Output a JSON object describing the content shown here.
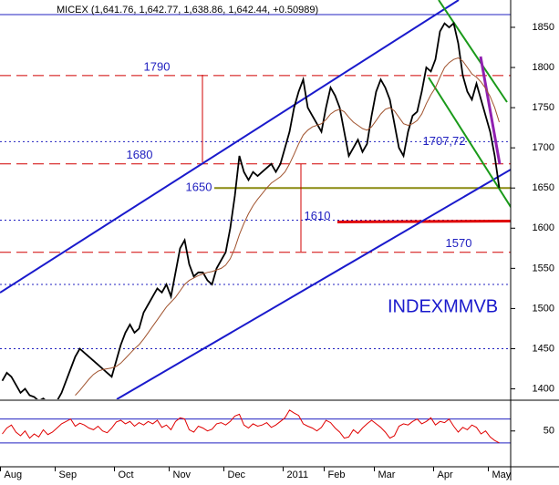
{
  "chart_data": [
    {
      "type": "line",
      "title": "MICEX (1,641.76, 1,642.77, 1,638.86, 1,642.44, +0.50989)",
      "annotation": "INDEXMMVB",
      "categories": [
        "Aug",
        null,
        null,
        null,
        null,
        null,
        null,
        null,
        null,
        null,
        null,
        null,
        "Sep",
        null,
        null,
        null,
        null,
        null,
        null,
        null,
        null,
        null,
        null,
        null,
        null,
        "Oct",
        null,
        null,
        null,
        null,
        null,
        null,
        null,
        null,
        null,
        null,
        null,
        "Nov",
        null,
        null,
        null,
        null,
        null,
        null,
        null,
        null,
        null,
        null,
        null,
        "Dec",
        null,
        null,
        null,
        null,
        null,
        null,
        null,
        null,
        null,
        null,
        null,
        null,
        "2011",
        null,
        null,
        null,
        null,
        null,
        null,
        null,
        null,
        "Feb",
        null,
        null,
        null,
        null,
        null,
        null,
        null,
        null,
        null,
        null,
        "Mar",
        null,
        null,
        null,
        null,
        null,
        null,
        null,
        null,
        null,
        null,
        null,
        null,
        "Apr",
        null,
        null,
        null,
        null,
        null,
        null,
        null,
        null,
        null,
        null,
        null,
        "May",
        null,
        null
      ],
      "series": [
        {
          "color": "#000000",
          "values": [
            1410,
            1420,
            1415,
            1405,
            1395,
            1400,
            1392,
            1390,
            1385,
            1388,
            1383,
            1380,
            1385,
            1395,
            1410,
            1425,
            1440,
            1450,
            1445,
            1440,
            1435,
            1430,
            1425,
            1420,
            1415,
            1435,
            1455,
            1470,
            1480,
            1470,
            1475,
            1495,
            1505,
            1515,
            1525,
            1520,
            1530,
            1515,
            1545,
            1575,
            1585,
            1555,
            1540,
            1545,
            1545,
            1535,
            1530,
            1550,
            1560,
            1570,
            1600,
            1640,
            1690,
            1670,
            1660,
            1670,
            1665,
            1670,
            1675,
            1680,
            1670,
            1680,
            1700,
            1720,
            1750,
            1770,
            1785,
            1750,
            1740,
            1730,
            1720,
            1750,
            1775,
            1765,
            1750,
            1720,
            1690,
            1700,
            1710,
            1695,
            1705,
            1740,
            1770,
            1785,
            1775,
            1760,
            1730,
            1700,
            1690,
            1720,
            1740,
            1745,
            1770,
            1800,
            1795,
            1810,
            1845,
            1855,
            1850,
            1855,
            1830,
            1790,
            1770,
            1760,
            1780,
            1760,
            1740,
            1720,
            1690,
            1650
          ]
        },
        {
          "color": "#a0522d",
          "values": [
            null,
            null,
            null,
            null,
            null,
            null,
            null,
            null,
            null,
            null,
            null,
            null,
            null,
            null,
            null,
            null,
            1392,
            1398,
            1405,
            1412,
            1418,
            1422,
            1424,
            1425,
            1426,
            1428,
            1432,
            1438,
            1444,
            1450,
            1455,
            1462,
            1470,
            1478,
            1486,
            1494,
            1502,
            1508,
            1514,
            1522,
            1530,
            1535,
            1538,
            1541,
            1543,
            1545,
            1546,
            1548,
            1550,
            1554,
            1562,
            1575,
            1592,
            1606,
            1618,
            1628,
            1636,
            1643,
            1650,
            1656,
            1660,
            1664,
            1670,
            1680,
            1692,
            1705,
            1716,
            1722,
            1726,
            1728,
            1730,
            1735,
            1742,
            1746,
            1748,
            1745,
            1738,
            1732,
            1728,
            1724,
            1722,
            1726,
            1734,
            1742,
            1748,
            1750,
            1746,
            1738,
            1730,
            1728,
            1730,
            1734,
            1742,
            1755,
            1766,
            1775,
            1788,
            1800,
            1806,
            1810,
            1812,
            1808,
            1800,
            1792,
            1788,
            1782,
            1774,
            1764,
            1750,
            1732
          ]
        }
      ],
      "ylim": [
        1387,
        1884
      ],
      "yticks": [
        1400,
        1450,
        1500,
        1550,
        1600,
        1650,
        1700,
        1750,
        1800,
        1850
      ],
      "red_levels": [
        1790,
        1680,
        1570
      ],
      "olive_level": 1650,
      "red_line_level": 1610,
      "blue_level": {
        "value": 1707.72,
        "label": "1707,72"
      },
      "dotted_levels": [
        1610,
        1530,
        1450
      ]
    },
    {
      "type": "line",
      "series": [
        {
          "color": "#e00000",
          "values": [
            45,
            55,
            60,
            48,
            42,
            50,
            38,
            45,
            40,
            52,
            44,
            48,
            55,
            62,
            66,
            70,
            58,
            63,
            60,
            55,
            52,
            58,
            50,
            47,
            55,
            65,
            68,
            62,
            66,
            58,
            64,
            60,
            66,
            62,
            68,
            56,
            60,
            52,
            66,
            72,
            70,
            52,
            48,
            58,
            55,
            50,
            53,
            62,
            64,
            60,
            66,
            75,
            78,
            60,
            55,
            62,
            58,
            60,
            64,
            56,
            60,
            66,
            72,
            85,
            80,
            76,
            62,
            58,
            55,
            50,
            56,
            68,
            64,
            55,
            48,
            38,
            40,
            52,
            46,
            55,
            62,
            68,
            62,
            56,
            48,
            38,
            42,
            58,
            62,
            60,
            66,
            70,
            62,
            66,
            72,
            60,
            66,
            64,
            70,
            58,
            48,
            56,
            52,
            60,
            56,
            45,
            50,
            40,
            34,
            30
          ]
        }
      ],
      "ylim": [
        -5,
        100
      ],
      "yticks": [
        50
      ],
      "levels": [
        30,
        70
      ]
    }
  ]
}
